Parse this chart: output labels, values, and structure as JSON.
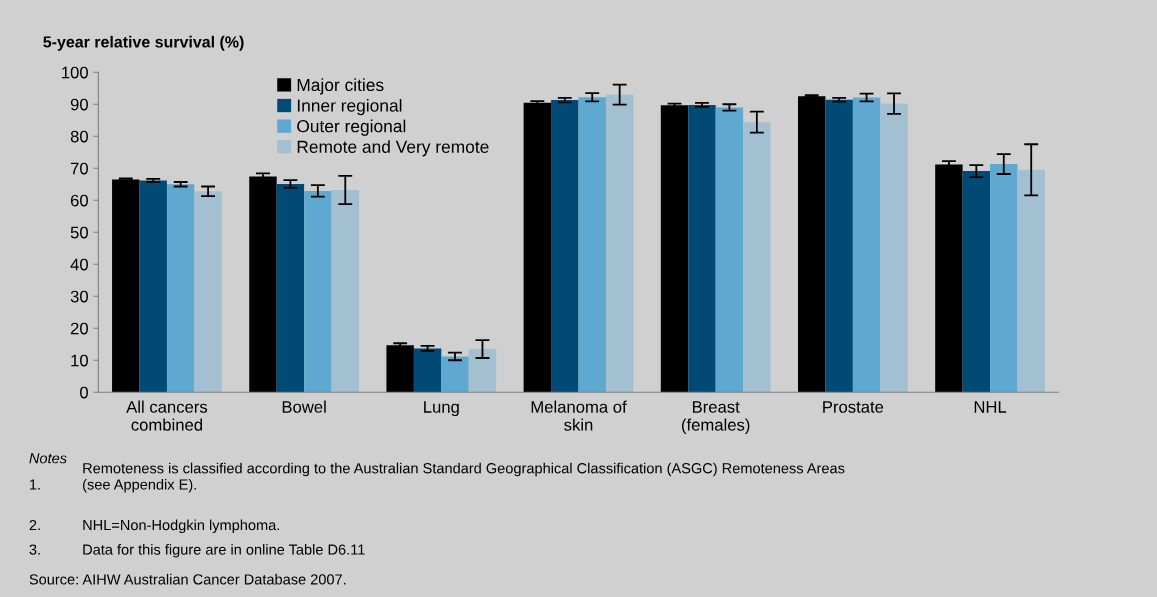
{
  "chart_data": {
    "type": "bar",
    "ylabel": "5-year relative survival (%)",
    "categories": [
      "All cancers\ncombined",
      "Bowel",
      "Lung",
      "Melanoma of\nskin",
      "Breast\n(females)",
      "Prostate",
      "NHL"
    ],
    "series": [
      {
        "name": "Major cities",
        "color": "#000000",
        "values": [
          66.5,
          67.4,
          14.7,
          90.5,
          89.7,
          92.5,
          71.2
        ],
        "errors": [
          0.3,
          1.0,
          0.6,
          0.5,
          0.5,
          0.3,
          1.0
        ]
      },
      {
        "name": "Inner regional",
        "color": "#004a75",
        "values": [
          66.2,
          65.1,
          13.7,
          91.3,
          89.8,
          91.4,
          69.1
        ],
        "errors": [
          0.5,
          1.2,
          0.8,
          0.7,
          0.6,
          0.6,
          1.9
        ]
      },
      {
        "name": "Outer regional",
        "color": "#5fa8d0",
        "values": [
          65.0,
          62.9,
          11.2,
          92.2,
          89.0,
          92.1,
          71.3
        ],
        "errors": [
          0.7,
          1.8,
          1.2,
          1.3,
          1.0,
          1.2,
          3.1
        ]
      },
      {
        "name": "Remote and Very remote",
        "color": "#a3bfd2",
        "values": [
          62.8,
          63.2,
          13.5,
          93.0,
          84.4,
          90.2,
          69.5
        ],
        "errors": [
          1.5,
          4.4,
          2.8,
          3.1,
          3.3,
          3.2,
          8.0
        ]
      }
    ],
    "ylim": [
      0,
      100
    ],
    "yticks": [
      0,
      10,
      20,
      30,
      40,
      50,
      60,
      70,
      80,
      90,
      100
    ],
    "grid": false,
    "legend": "top",
    "annotations": [
      "Notes",
      "1.",
      "Remoteness is classified according to the Australian Standard Geographical Classification (ASGC) Remoteness Areas\n(see Appendix E).",
      "2.",
      "NHL=Non-Hodgkin lymphoma.",
      "3.",
      "Data for this figure are in online Table D6.11",
      "Source: AIHW Australian Cancer Database 2007."
    ]
  }
}
